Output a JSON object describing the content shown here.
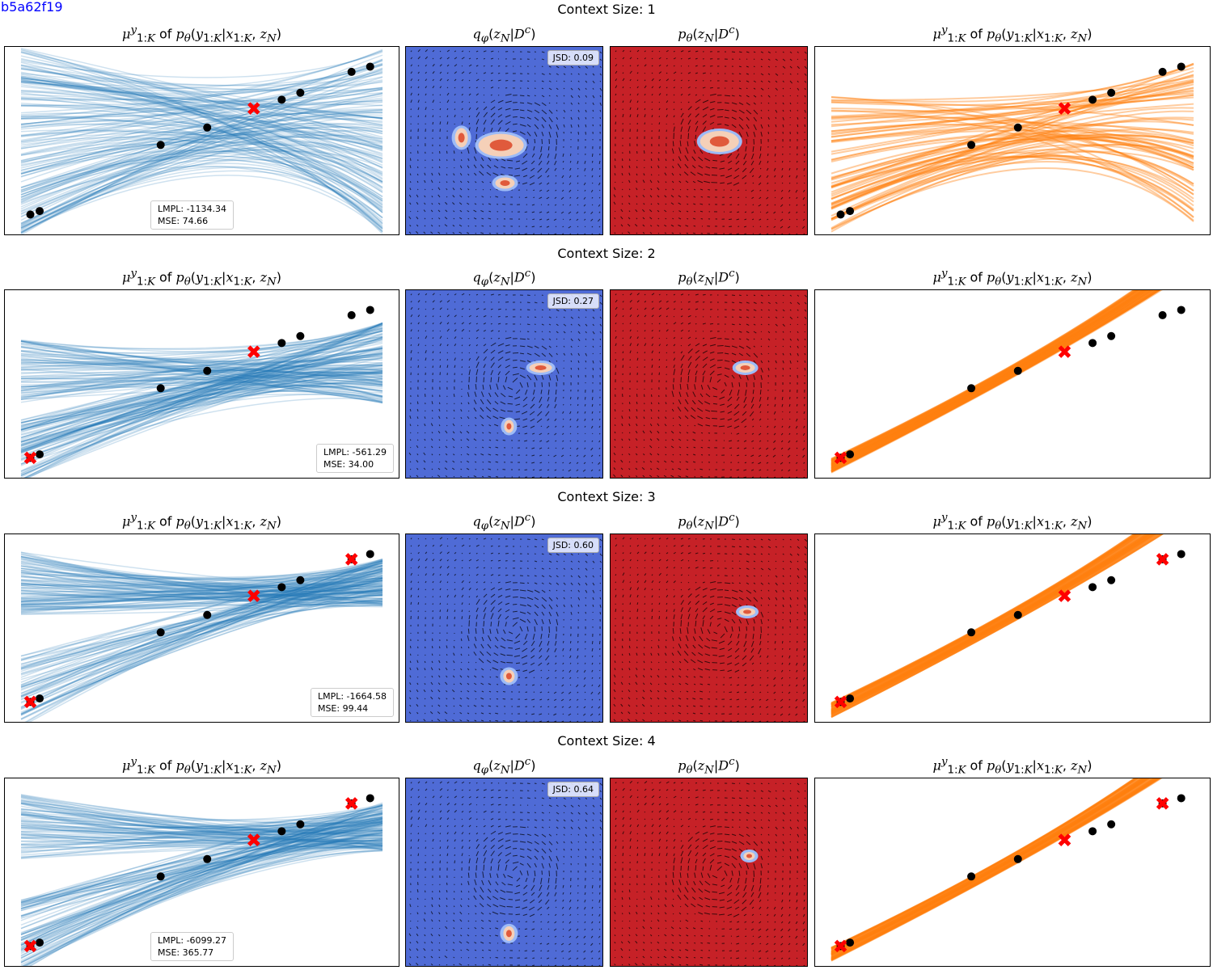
{
  "figure_tag": "b5a62f19",
  "colors": {
    "blue_series": "#1f77b4",
    "orange_series": "#ff7f0e",
    "posterior_bg": "#4f6bd6",
    "prior_bg": "#c62127",
    "target_marker": "#ff0000",
    "context_marker": "#000000"
  },
  "panel_titles": {
    "pred_prior": "μ^y_{1:K} of p_θ(y_{1:K}|x_{1:K}, z_N)",
    "posterior": "q_φ(z_N|D^c)",
    "prior": "p_θ(z_N|D^c)",
    "pred_posterior": "μ^y_{1:K} of p_θ(y_{1:K}|x_{1:K}, z_N)"
  },
  "chart_data": [
    {
      "type": "line",
      "context_title": "Context Size: 1",
      "context_points": {
        "x": [
          -5.0,
          -4.8,
          -2.2,
          -1.2,
          0.4,
          0.8,
          1.9,
          2.3
        ],
        "y": [
          -6.0,
          -5.8,
          -2.0,
          -1.0,
          0.6,
          1.0,
          2.2,
          2.5
        ]
      },
      "target_points": {
        "x": [
          -0.2
        ],
        "y": [
          0.1
        ]
      },
      "legend": {
        "lmpl": "LMPL: -1134.34",
        "mse": "MSE: 74.66"
      },
      "jsd": "JSD: 0.09"
    },
    {
      "type": "line",
      "context_title": "Context Size: 2",
      "context_points": {
        "x": [
          -5.0,
          -4.8,
          -2.2,
          -1.2,
          0.4,
          0.8,
          1.9,
          2.3
        ],
        "y": [
          -6.0,
          -5.8,
          -2.0,
          -1.0,
          0.6,
          1.0,
          2.2,
          2.5
        ]
      },
      "target_points": {
        "x": [
          -5.0,
          -0.2
        ],
        "y": [
          -6.0,
          0.1
        ]
      },
      "legend": {
        "lmpl": "LMPL: -561.29",
        "mse": "MSE: 34.00"
      },
      "jsd": "JSD: 0.27"
    },
    {
      "type": "line",
      "context_title": "Context Size: 3",
      "context_points": {
        "x": [
          -5.0,
          -4.8,
          -2.2,
          -1.2,
          0.4,
          0.8,
          1.9,
          2.3
        ],
        "y": [
          -6.0,
          -5.8,
          -2.0,
          -1.0,
          0.6,
          1.0,
          2.2,
          2.5
        ]
      },
      "target_points": {
        "x": [
          -5.0,
          -0.2,
          1.9
        ],
        "y": [
          -6.0,
          0.1,
          2.2
        ]
      },
      "legend": {
        "lmpl": "LMPL: -1664.58",
        "mse": "MSE: 99.44"
      },
      "jsd": "JSD: 0.60"
    },
    {
      "type": "line",
      "context_title": "Context Size: 4",
      "context_points": {
        "x": [
          -5.0,
          -4.8,
          -2.2,
          -1.2,
          0.4,
          0.8,
          1.9,
          2.3
        ],
        "y": [
          -6.0,
          -5.8,
          -2.0,
          -1.0,
          0.6,
          1.0,
          2.2,
          2.5
        ]
      },
      "target_points": {
        "x": [
          -5.0,
          -0.2,
          1.9,
          -0.2
        ],
        "y": [
          -6.0,
          0.1,
          2.2,
          0.1
        ]
      },
      "legend": {
        "lmpl": "LMPL: -6099.27",
        "mse": "MSE: 365.77"
      },
      "jsd": "JSD: 0.64"
    }
  ]
}
